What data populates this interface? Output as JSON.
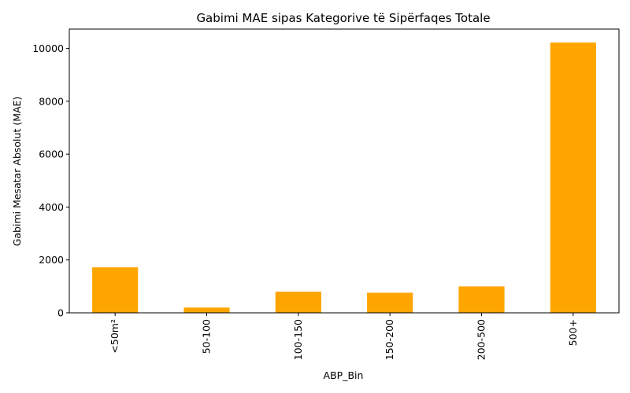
{
  "chart_data": {
    "type": "bar",
    "title": "Gabimi MAE sipas Kategorive të Sipërfaqes Totale",
    "xlabel": "ABP_Bin",
    "ylabel": "Gabimi Mesatar Absolut (MAE)",
    "categories": [
      "<50m²",
      "50-100",
      "100-150",
      "150-200",
      "200-500",
      "500+"
    ],
    "values": [
      1720,
      200,
      800,
      760,
      1000,
      10220
    ],
    "ylim": [
      0,
      10730
    ],
    "yticks": [
      0,
      2000,
      4000,
      6000,
      8000,
      10000
    ],
    "bar_color": "#ffa500",
    "grid": false,
    "legend": false
  }
}
